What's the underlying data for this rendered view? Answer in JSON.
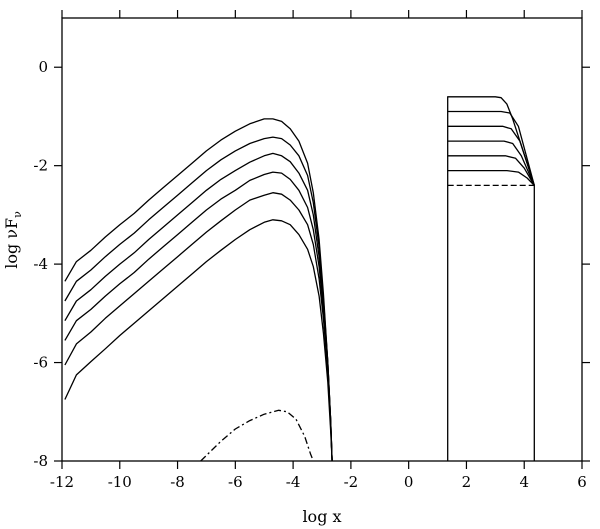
{
  "chart_data": {
    "type": "line",
    "xlabel": "log x",
    "ylabel": "log νF",
    "ylabel_sub": "ν",
    "xlim": [
      -12,
      6
    ],
    "ylim": [
      -8,
      1
    ],
    "grid": false,
    "x_ticks": [
      -12,
      -10,
      -8,
      -6,
      -4,
      -2,
      0,
      2,
      4,
      6
    ],
    "x_tick_labels": [
      "-12",
      "-10",
      "-8",
      "-6",
      "-4",
      "-2",
      "0",
      "2",
      "4",
      "6"
    ],
    "y_ticks": [
      -8,
      -6,
      -4,
      -2,
      0
    ],
    "y_tick_labels": [
      "-8",
      "-6",
      "-4",
      "-2",
      "0"
    ],
    "series": [
      {
        "style": "solid",
        "x": [
          -11.9,
          -11.5,
          -11,
          -10.5,
          -10,
          -9.5,
          -9,
          -8.5,
          -8,
          -7.5,
          -7,
          -6.5,
          -6,
          -5.5,
          -5,
          -4.7,
          -4.4,
          -4.1,
          -3.8,
          -3.5,
          -3.3,
          -3.1,
          -2.95,
          -2.8,
          -2.7,
          -2.65
        ],
        "y": [
          -4.35,
          -3.95,
          -3.72,
          -3.45,
          -3.2,
          -2.97,
          -2.7,
          -2.45,
          -2.2,
          -1.95,
          -1.7,
          -1.48,
          -1.3,
          -1.15,
          -1.05,
          -1.05,
          -1.1,
          -1.25,
          -1.5,
          -1.95,
          -2.55,
          -3.5,
          -4.6,
          -6.0,
          -7.2,
          -8.0
        ]
      },
      {
        "style": "solid",
        "x": [
          -11.9,
          -11.5,
          -11,
          -10.5,
          -10,
          -9.5,
          -9,
          -8.5,
          -8,
          -7.5,
          -7,
          -6.5,
          -6,
          -5.5,
          -5,
          -4.7,
          -4.4,
          -4.1,
          -3.8,
          -3.5,
          -3.3,
          -3.1,
          -2.95,
          -2.8,
          -2.7,
          -2.65
        ],
        "y": [
          -4.75,
          -4.35,
          -4.12,
          -3.85,
          -3.6,
          -3.37,
          -3.1,
          -2.85,
          -2.6,
          -2.35,
          -2.1,
          -1.88,
          -1.7,
          -1.55,
          -1.45,
          -1.42,
          -1.45,
          -1.58,
          -1.8,
          -2.2,
          -2.75,
          -3.65,
          -4.7,
          -6.0,
          -7.2,
          -8.0
        ]
      },
      {
        "style": "solid",
        "x": [
          -11.9,
          -11.5,
          -11,
          -10.5,
          -10,
          -9.5,
          -9,
          -8.5,
          -8,
          -7.5,
          -7,
          -6.5,
          -6,
          -5.5,
          -5,
          -4.7,
          -4.4,
          -4.1,
          -3.8,
          -3.5,
          -3.3,
          -3.1,
          -2.95,
          -2.8,
          -2.7,
          -2.65
        ],
        "y": [
          -5.15,
          -4.75,
          -4.52,
          -4.25,
          -4.0,
          -3.77,
          -3.5,
          -3.25,
          -3.0,
          -2.75,
          -2.5,
          -2.28,
          -2.1,
          -1.93,
          -1.8,
          -1.75,
          -1.8,
          -1.92,
          -2.15,
          -2.5,
          -3.0,
          -3.85,
          -4.8,
          -6.0,
          -7.2,
          -8.0
        ]
      },
      {
        "style": "solid",
        "x": [
          -11.9,
          -11.5,
          -11,
          -10.5,
          -10,
          -9.5,
          -9,
          -8.5,
          -8,
          -7.5,
          -7,
          -6.5,
          -6,
          -5.5,
          -5,
          -4.7,
          -4.4,
          -4.1,
          -3.8,
          -3.5,
          -3.3,
          -3.1,
          -2.95,
          -2.8,
          -2.7,
          -2.65
        ],
        "y": [
          -5.55,
          -5.15,
          -4.92,
          -4.65,
          -4.4,
          -4.17,
          -3.9,
          -3.65,
          -3.4,
          -3.15,
          -2.9,
          -2.68,
          -2.5,
          -2.3,
          -2.18,
          -2.13,
          -2.15,
          -2.28,
          -2.5,
          -2.85,
          -3.3,
          -4.05,
          -4.95,
          -6.1,
          -7.2,
          -8.0
        ]
      },
      {
        "style": "solid",
        "x": [
          -11.9,
          -11.5,
          -11,
          -10.5,
          -10,
          -9.5,
          -9,
          -8.5,
          -8,
          -7.5,
          -7,
          -6.5,
          -6,
          -5.5,
          -5,
          -4.7,
          -4.4,
          -4.1,
          -3.8,
          -3.5,
          -3.3,
          -3.1,
          -2.95,
          -2.8,
          -2.7,
          -2.65
        ],
        "y": [
          -6.05,
          -5.62,
          -5.38,
          -5.1,
          -4.85,
          -4.6,
          -4.35,
          -4.1,
          -3.85,
          -3.6,
          -3.35,
          -3.12,
          -2.9,
          -2.7,
          -2.6,
          -2.55,
          -2.58,
          -2.7,
          -2.9,
          -3.2,
          -3.6,
          -4.3,
          -5.1,
          -6.2,
          -7.3,
          -8.0
        ]
      },
      {
        "style": "solid",
        "x": [
          -11.9,
          -11.5,
          -11,
          -10.5,
          -10,
          -9.5,
          -9,
          -8.5,
          -8,
          -7.5,
          -7,
          -6.5,
          -6,
          -5.5,
          -5,
          -4.7,
          -4.4,
          -4.1,
          -3.8,
          -3.5,
          -3.3,
          -3.1,
          -2.95,
          -2.8,
          -2.7,
          -2.65
        ],
        "y": [
          -6.75,
          -6.25,
          -5.98,
          -5.72,
          -5.45,
          -5.2,
          -4.95,
          -4.7,
          -4.45,
          -4.2,
          -3.95,
          -3.72,
          -3.5,
          -3.3,
          -3.15,
          -3.1,
          -3.12,
          -3.2,
          -3.4,
          -3.7,
          -4.05,
          -4.65,
          -5.4,
          -6.4,
          -7.4,
          -8.0
        ]
      },
      {
        "style": "dashdot",
        "x": [
          -7.2,
          -6.5,
          -6,
          -5.5,
          -5,
          -4.5,
          -4.2,
          -3.9,
          -3.6,
          -3.4,
          -3.3
        ],
        "y": [
          -8.0,
          -7.6,
          -7.35,
          -7.18,
          -7.05,
          -6.97,
          -7.0,
          -7.15,
          -7.5,
          -7.85,
          -8.0
        ]
      },
      {
        "style": "solid",
        "x": [
          1.35,
          1.35,
          3.0,
          3.2,
          3.4,
          3.6,
          4.35,
          4.35
        ],
        "y": [
          -8.0,
          -0.6,
          -0.6,
          -0.62,
          -0.75,
          -1.05,
          -2.4,
          -8.0
        ]
      },
      {
        "style": "solid",
        "x": [
          1.35,
          3.2,
          3.5,
          3.8,
          4.35
        ],
        "y": [
          -0.9,
          -0.9,
          -0.93,
          -1.2,
          -2.4
        ]
      },
      {
        "style": "solid",
        "x": [
          1.35,
          3.25,
          3.55,
          3.85,
          4.35
        ],
        "y": [
          -1.2,
          -1.2,
          -1.25,
          -1.5,
          -2.4
        ]
      },
      {
        "style": "solid",
        "x": [
          1.35,
          3.3,
          3.6,
          3.9,
          4.35
        ],
        "y": [
          -1.5,
          -1.5,
          -1.55,
          -1.8,
          -2.4
        ]
      },
      {
        "style": "solid",
        "x": [
          1.35,
          3.35,
          3.7,
          4.0,
          4.35
        ],
        "y": [
          -1.8,
          -1.8,
          -1.85,
          -2.05,
          -2.4
        ]
      },
      {
        "style": "solid",
        "x": [
          1.35,
          3.4,
          3.8,
          4.1,
          4.35
        ],
        "y": [
          -2.1,
          -2.1,
          -2.13,
          -2.25,
          -2.4
        ]
      },
      {
        "style": "dashed",
        "x": [
          1.35,
          4.35
        ],
        "y": [
          -2.4,
          -2.4
        ]
      }
    ]
  }
}
